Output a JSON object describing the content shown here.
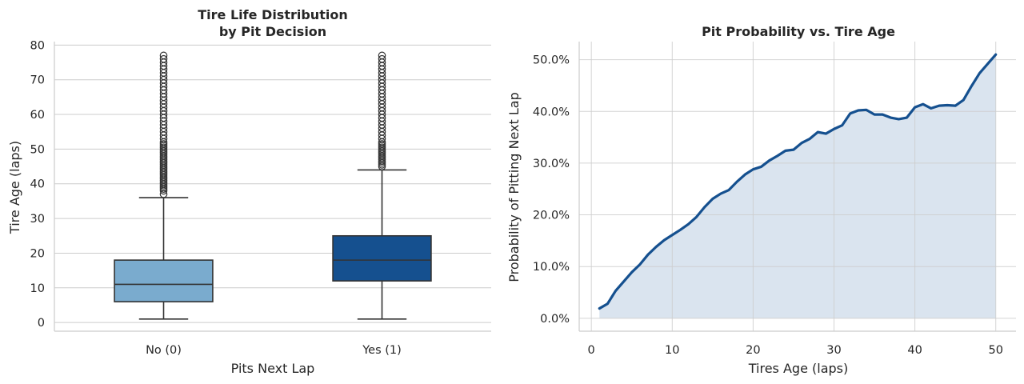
{
  "chart_data": [
    {
      "type": "box",
      "title": [
        "Tire Life Distribution",
        "by Pit Decision"
      ],
      "xlabel": "Pits Next Lap",
      "ylabel": "Tire Age (laps)",
      "ylim": [
        -2.5,
        81
      ],
      "yticks": [
        0,
        10,
        20,
        30,
        40,
        50,
        60,
        70,
        80
      ],
      "grid": "y",
      "categories": [
        "No (0)",
        "Yes (1)"
      ],
      "colors": [
        "#7aabce",
        "#15508f"
      ],
      "boxes": [
        {
          "category": "No (0)",
          "whisker_low": 1,
          "q1": 6,
          "median": 11,
          "q3": 18,
          "whisker_high": 36,
          "outliers": [
            37,
            38,
            38.5,
            39,
            39.5,
            40,
            40.5,
            41,
            41.5,
            42,
            42.5,
            43,
            43.5,
            44,
            44.5,
            45,
            45.5,
            46,
            46.5,
            47,
            47.5,
            48,
            48.5,
            49,
            49.5,
            50,
            50.5,
            51,
            51.5,
            52,
            53,
            54,
            55,
            56,
            57,
            58,
            59,
            60,
            61,
            62,
            63,
            64,
            65,
            66,
            67,
            68,
            69,
            70,
            71,
            72,
            73,
            74,
            75,
            76,
            77
          ]
        },
        {
          "category": "Yes (1)",
          "whisker_low": 1,
          "q1": 12,
          "median": 18,
          "q3": 25,
          "whisker_high": 44,
          "outliers": [
            45,
            45.5,
            46,
            46.5,
            47,
            47.5,
            48,
            48.5,
            49,
            49.5,
            50,
            50.5,
            51,
            51.5,
            52,
            53,
            54,
            55,
            56,
            57,
            58,
            59,
            60,
            61,
            62,
            63,
            64,
            65,
            66,
            67,
            68,
            69,
            70,
            71,
            72,
            73,
            74,
            75,
            76,
            77
          ]
        }
      ]
    },
    {
      "type": "area",
      "title": "Pit Probability vs. Tire Age",
      "xlabel": "Tires Age (laps)",
      "ylabel": "Probability of Pitting Next Lap",
      "xlim": [
        -1.5,
        52.5
      ],
      "ylim": [
        -0.025,
        0.535
      ],
      "xticks": [
        0,
        10,
        20,
        30,
        40,
        50
      ],
      "yticks": [
        0,
        0.1,
        0.2,
        0.3,
        0.4,
        0.5
      ],
      "ytick_labels": [
        "0.0%",
        "10.0%",
        "20.0%",
        "30.0%",
        "40.0%",
        "50.0%"
      ],
      "grid": "both",
      "line_color": "#15508f",
      "fill_color": "#dae4ef",
      "x": [
        1,
        2,
        3,
        4,
        5,
        6,
        7,
        8,
        9,
        10,
        11,
        12,
        13,
        14,
        15,
        16,
        17,
        18,
        19,
        20,
        21,
        22,
        23,
        24,
        25,
        26,
        27,
        28,
        29,
        30,
        31,
        32,
        33,
        34,
        35,
        36,
        37,
        38,
        39,
        40,
        41,
        42,
        43,
        44,
        45,
        46,
        47,
        48,
        49,
        50
      ],
      "y": [
        0.019,
        0.028,
        0.053,
        0.071,
        0.089,
        0.104,
        0.123,
        0.138,
        0.151,
        0.161,
        0.171,
        0.182,
        0.196,
        0.215,
        0.231,
        0.241,
        0.248,
        0.264,
        0.278,
        0.288,
        0.293,
        0.305,
        0.314,
        0.324,
        0.326,
        0.339,
        0.347,
        0.36,
        0.357,
        0.366,
        0.373,
        0.396,
        0.402,
        0.403,
        0.394,
        0.394,
        0.388,
        0.385,
        0.388,
        0.408,
        0.414,
        0.406,
        0.411,
        0.412,
        0.411,
        0.422,
        0.449,
        0.474,
        0.492,
        0.51
      ]
    }
  ]
}
